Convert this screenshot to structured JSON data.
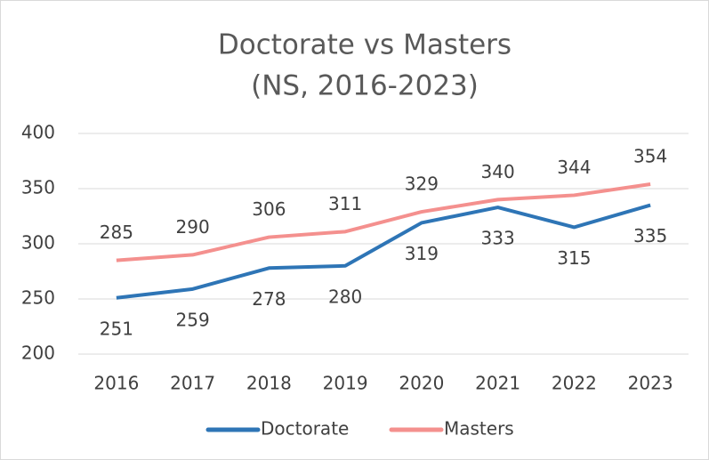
{
  "chart_data": {
    "type": "line",
    "title": "Doctorate vs Masters",
    "subtitle": "(NS, 2016-2023)",
    "categories": [
      "2016",
      "2017",
      "2018",
      "2019",
      "2020",
      "2021",
      "2022",
      "2023"
    ],
    "series": [
      {
        "name": "Doctorate",
        "color": "#2e75b6",
        "values": [
          251,
          259,
          278,
          280,
          319,
          333,
          315,
          335
        ]
      },
      {
        "name": "Masters",
        "color": "#f4908e",
        "values": [
          285,
          290,
          306,
          311,
          329,
          340,
          344,
          354
        ]
      }
    ],
    "ylim": [
      200,
      400
    ],
    "yticks": [
      200,
      250,
      300,
      350,
      400
    ],
    "grid": true,
    "legend": "bottom"
  }
}
